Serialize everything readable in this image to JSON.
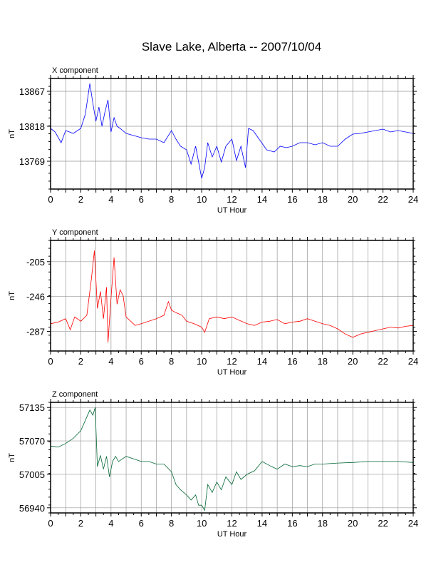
{
  "title": "Slave Lake, Alberta -- 2007/10/04",
  "chart_data": [
    {
      "type": "line",
      "title": "X component",
      "xlabel": "UT Hour",
      "ylabel": "nT",
      "xlim": [
        0,
        24
      ],
      "ylim": [
        13730,
        13885
      ],
      "x_ticks": [
        0,
        2,
        4,
        6,
        8,
        10,
        12,
        14,
        16,
        18,
        20,
        22,
        24
      ],
      "y_ticks": [
        13769,
        13818,
        13867
      ],
      "grid": true,
      "color": "#0000ff",
      "x": [
        0,
        0.3,
        0.7,
        1,
        1.5,
        2,
        2.3,
        2.6,
        2.8,
        3,
        3.2,
        3.4,
        3.6,
        3.8,
        4,
        4.2,
        4.4,
        4.6,
        5,
        5.5,
        6,
        6.5,
        7,
        7.5,
        8,
        8.3,
        8.6,
        9,
        9.3,
        9.6,
        10,
        10.2,
        10.4,
        10.7,
        11,
        11.3,
        11.6,
        12,
        12.3,
        12.6,
        12.9,
        13.1,
        13.4,
        13.8,
        14.3,
        14.8,
        15.2,
        15.6,
        16,
        16.5,
        17,
        17.5,
        18,
        18.5,
        19,
        19.5,
        20,
        20.5,
        21,
        21.5,
        22,
        22.5,
        23,
        23.5,
        24
      ],
      "y": [
        13815,
        13810,
        13795,
        13812,
        13808,
        13815,
        13835,
        13878,
        13850,
        13825,
        13845,
        13818,
        13838,
        13855,
        13810,
        13830,
        13818,
        13815,
        13808,
        13805,
        13802,
        13800,
        13800,
        13795,
        13812,
        13800,
        13790,
        13785,
        13765,
        13790,
        13745,
        13760,
        13795,
        13775,
        13790,
        13768,
        13790,
        13800,
        13770,
        13790,
        13760,
        13815,
        13812,
        13800,
        13785,
        13782,
        13790,
        13788,
        13790,
        13795,
        13795,
        13792,
        13795,
        13790,
        13790,
        13800,
        13807,
        13808,
        13810,
        13812,
        13814,
        13810,
        13812,
        13810,
        13808
      ]
    },
    {
      "type": "line",
      "title": "Y component",
      "xlabel": "UT Hour",
      "ylabel": "nT",
      "xlim": [
        0,
        24
      ],
      "ylim": [
        -310,
        -180
      ],
      "x_ticks": [
        0,
        2,
        4,
        6,
        8,
        10,
        12,
        14,
        16,
        18,
        20,
        22,
        24
      ],
      "y_ticks": [
        -287,
        -246,
        -205
      ],
      "grid": true,
      "color": "#ff0000",
      "x": [
        0,
        0.5,
        1,
        1.3,
        1.6,
        2,
        2.4,
        2.7,
        2.9,
        3.1,
        3.3,
        3.5,
        3.7,
        3.8,
        4,
        4.2,
        4.4,
        4.6,
        4.8,
        5,
        5.3,
        5.6,
        6,
        6.5,
        7,
        7.5,
        7.8,
        8,
        8.3,
        8.7,
        9,
        9.5,
        10,
        10.2,
        10.5,
        11,
        11.5,
        12,
        12.5,
        13,
        13.5,
        14,
        14.5,
        15,
        15.5,
        16,
        16.5,
        17,
        17.5,
        18,
        18.5,
        19,
        19.5,
        20,
        20.5,
        21,
        21.5,
        22,
        22.5,
        23,
        23.5,
        24
      ],
      "y": [
        -278,
        -276,
        -272,
        -285,
        -270,
        -275,
        -268,
        -225,
        -192,
        -260,
        -240,
        -272,
        -235,
        -300,
        -248,
        -200,
        -255,
        -238,
        -245,
        -270,
        -275,
        -280,
        -278,
        -275,
        -272,
        -268,
        -252,
        -262,
        -265,
        -268,
        -275,
        -278,
        -282,
        -288,
        -272,
        -270,
        -272,
        -270,
        -274,
        -278,
        -280,
        -276,
        -275,
        -273,
        -278,
        -276,
        -275,
        -272,
        -275,
        -278,
        -280,
        -284,
        -290,
        -294,
        -290,
        -288,
        -286,
        -284,
        -282,
        -283,
        -281,
        -280
      ]
    },
    {
      "type": "line",
      "title": "Z component",
      "xlabel": "UT Hour",
      "ylabel": "nT",
      "xlim": [
        0,
        24
      ],
      "ylim": [
        56930,
        57145
      ],
      "x_ticks": [
        0,
        2,
        4,
        6,
        8,
        10,
        12,
        14,
        16,
        18,
        20,
        22,
        24
      ],
      "y_ticks": [
        56940,
        57005,
        57070,
        57135
      ],
      "grid": true,
      "color": "#006633",
      "x": [
        0,
        0.5,
        1,
        1.5,
        2,
        2.3,
        2.6,
        2.8,
        2.95,
        3.1,
        3.3,
        3.5,
        3.7,
        3.9,
        4.1,
        4.3,
        4.5,
        5,
        5.5,
        6,
        6.5,
        7,
        7.5,
        8,
        8.3,
        8.6,
        9,
        9.3,
        9.6,
        9.8,
        10,
        10.2,
        10.4,
        10.7,
        11,
        11.3,
        11.6,
        12,
        12.3,
        12.6,
        13,
        13.5,
        14,
        14.5,
        15,
        15.5,
        16,
        16.5,
        17,
        17.5,
        18,
        19,
        20,
        21,
        22,
        23,
        24
      ],
      "y": [
        57060,
        57058,
        57065,
        57075,
        57090,
        57110,
        57130,
        57120,
        57135,
        57020,
        57042,
        57015,
        57040,
        57000,
        57030,
        57040,
        57030,
        57040,
        57035,
        57030,
        57030,
        57025,
        57025,
        57010,
        56985,
        56975,
        56965,
        56955,
        56965,
        56945,
        56945,
        56935,
        56985,
        56970,
        56990,
        56975,
        57000,
        56985,
        57010,
        56995,
        57005,
        57012,
        57030,
        57022,
        57015,
        57025,
        57020,
        57022,
        57020,
        57025,
        57025,
        57027,
        57028,
        57030,
        57030,
        57030,
        57028
      ]
    }
  ]
}
